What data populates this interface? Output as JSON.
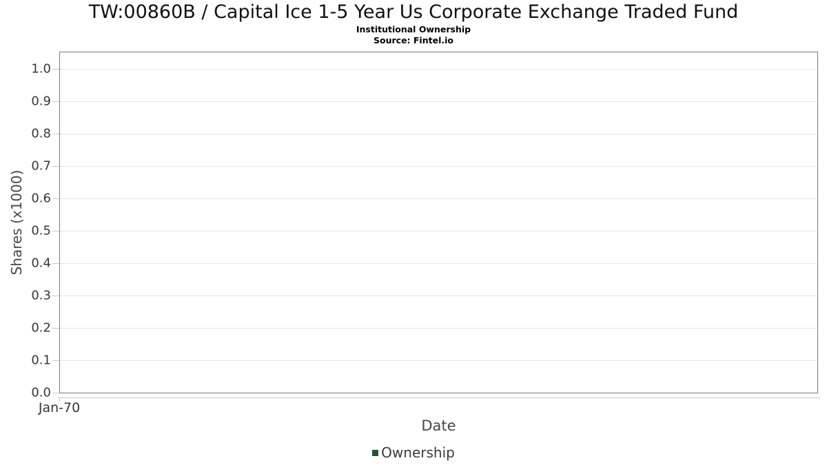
{
  "chart_data": {
    "type": "line",
    "title": "TW:00860B / Capital Ice 1-5 Year Us Corporate Exchange Traded Fund",
    "subtitle": "Institutional Ownership",
    "source": "Source: Fintel.io",
    "xlabel": "Date",
    "ylabel": "Shares (x1000)",
    "x_tick_labels": [
      "Jan-70"
    ],
    "y_tick_labels": [
      "0.0",
      "0.1",
      "0.2",
      "0.3",
      "0.4",
      "0.5",
      "0.6",
      "0.7",
      "0.8",
      "0.9",
      "1.0"
    ],
    "ylim": [
      0.0,
      1.055
    ],
    "grid": true,
    "legend_position": "bottom-center",
    "legend": [
      {
        "label": "Ownership",
        "marker_color": "#26522e"
      }
    ],
    "series": [
      {
        "name": "Ownership",
        "color": "#26522e",
        "x": [],
        "values": []
      }
    ],
    "colors": {
      "plot_border": "#7a7a7a",
      "gridline": "#e7e7e7",
      "axis_line": "#c9c9c9",
      "tick_label": "#363636",
      "axis_title": "#474747",
      "title": "#111111"
    }
  }
}
